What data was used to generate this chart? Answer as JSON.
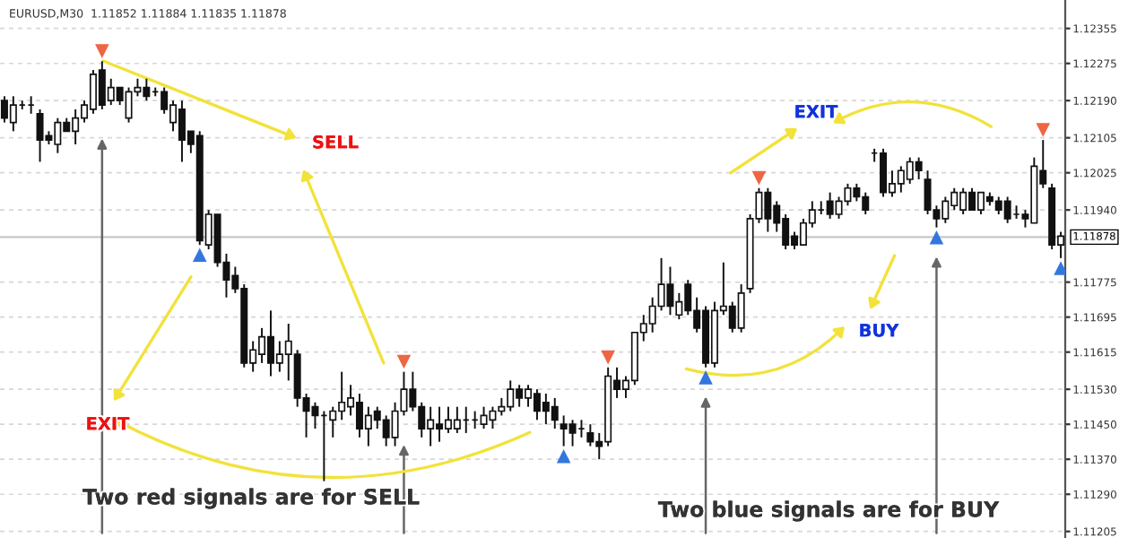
{
  "chart_data": {
    "type": "candlestick",
    "title": "EURUSD,M30  1.11852 1.11884 1.11835 1.11878",
    "categories": [
      null,
      null,
      null,
      null,
      null,
      null,
      null,
      null,
      null,
      null,
      null,
      null,
      null,
      null,
      null,
      null,
      null,
      null,
      null,
      null,
      null,
      null,
      null,
      null,
      null,
      null,
      null,
      null,
      null,
      null,
      null,
      null,
      null,
      null,
      null,
      null,
      null,
      null,
      null,
      null,
      null,
      null,
      null,
      null,
      null,
      null,
      null,
      null,
      null,
      null,
      null,
      null,
      null,
      null,
      null,
      null,
      null,
      null,
      null,
      null,
      null,
      null,
      null,
      null,
      null,
      null,
      null,
      null,
      null,
      null,
      null,
      null,
      null,
      null,
      null,
      null,
      null,
      null,
      null,
      null,
      null,
      null,
      null,
      null,
      null,
      null,
      null,
      null,
      null,
      null,
      null,
      null,
      null,
      null,
      null,
      null,
      null,
      null,
      null,
      null,
      null,
      null,
      null,
      null,
      null,
      null,
      null,
      null,
      null,
      null,
      null,
      null,
      null,
      null,
      null,
      null,
      null,
      null,
      null,
      null
    ],
    "ohlc": [
      [
        1.1219,
        1.122,
        1.1214,
        1.1215
      ],
      [
        1.1214,
        1.122,
        1.1212,
        1.1218
      ],
      [
        1.1218,
        1.1219,
        1.1217,
        1.1218
      ],
      [
        1.1218,
        1.122,
        1.1216,
        1.1218
      ],
      [
        1.1216,
        1.1217,
        1.1205,
        1.121
      ],
      [
        1.1211,
        1.1212,
        1.1209,
        1.121
      ],
      [
        1.1209,
        1.1215,
        1.1207,
        1.1214
      ],
      [
        1.1214,
        1.1215,
        1.1212,
        1.1212
      ],
      [
        1.1212,
        1.1217,
        1.1209,
        1.1215
      ],
      [
        1.1215,
        1.1219,
        1.1214,
        1.1218
      ],
      [
        1.1217,
        1.1226,
        1.1216,
        1.1225
      ],
      [
        1.1226,
        1.1228,
        1.1217,
        1.1218
      ],
      [
        1.1219,
        1.1224,
        1.1218,
        1.1222
      ],
      [
        1.1222,
        1.1222,
        1.1218,
        1.1219
      ],
      [
        1.1215,
        1.1222,
        1.1214,
        1.1221
      ],
      [
        1.1221,
        1.1224,
        1.122,
        1.1222
      ],
      [
        1.1222,
        1.1224,
        1.1219,
        1.122
      ],
      [
        1.1221,
        1.1222,
        1.122,
        1.1221
      ],
      [
        1.1221,
        1.1222,
        1.1216,
        1.1217
      ],
      [
        1.1214,
        1.1219,
        1.1212,
        1.1218
      ],
      [
        1.1217,
        1.1219,
        1.1205,
        1.121
      ],
      [
        1.1212,
        1.1212,
        1.1207,
        1.1209
      ],
      [
        1.1211,
        1.1212,
        1.1186,
        1.1187
      ],
      [
        1.1186,
        1.1194,
        1.1185,
        1.1193
      ],
      [
        1.1193,
        1.1193,
        1.1181,
        1.1182
      ],
      [
        1.1182,
        1.1184,
        1.1174,
        1.1178
      ],
      [
        1.1179,
        1.1181,
        1.1175,
        1.1176
      ],
      [
        1.1176,
        1.1177,
        1.1158,
        1.1159
      ],
      [
        1.1159,
        1.1164,
        1.1157,
        1.1162
      ],
      [
        1.1161,
        1.1167,
        1.1159,
        1.1165
      ],
      [
        1.1165,
        1.1171,
        1.1156,
        1.1159
      ],
      [
        1.1159,
        1.1164,
        1.1157,
        1.1161
      ],
      [
        1.1161,
        1.1168,
        1.1155,
        1.1164
      ],
      [
        1.1161,
        1.1162,
        1.1149,
        1.1151
      ],
      [
        1.1151,
        1.1152,
        1.1142,
        1.1148
      ],
      [
        1.1149,
        1.115,
        1.1144,
        1.1147
      ],
      [
        1.1147,
        1.1148,
        1.1132,
        1.1147
      ],
      [
        1.1146,
        1.1149,
        1.1142,
        1.1148
      ],
      [
        1.1148,
        1.1157,
        1.1146,
        1.115
      ],
      [
        1.1149,
        1.1154,
        1.1147,
        1.1151
      ],
      [
        1.115,
        1.1152,
        1.1142,
        1.1144
      ],
      [
        1.1144,
        1.1149,
        1.114,
        1.1147
      ],
      [
        1.1148,
        1.1149,
        1.1144,
        1.1146
      ],
      [
        1.1146,
        1.1147,
        1.114,
        1.1142
      ],
      [
        1.1142,
        1.115,
        1.114,
        1.1148
      ],
      [
        1.1148,
        1.1157,
        1.1147,
        1.1153
      ],
      [
        1.1153,
        1.1157,
        1.1148,
        1.1149
      ],
      [
        1.1149,
        1.115,
        1.1142,
        1.1144
      ],
      [
        1.1144,
        1.1149,
        1.114,
        1.1146
      ],
      [
        1.1145,
        1.1149,
        1.1141,
        1.1144
      ],
      [
        1.1144,
        1.1149,
        1.1143,
        1.1146
      ],
      [
        1.1144,
        1.1149,
        1.1143,
        1.1146
      ],
      [
        1.1146,
        1.1149,
        1.1143,
        1.1146
      ],
      [
        1.1146,
        1.1148,
        1.1144,
        1.1146
      ],
      [
        1.1145,
        1.1149,
        1.1144,
        1.1147
      ],
      [
        1.1146,
        1.1149,
        1.1144,
        1.1148
      ],
      [
        1.1148,
        1.1151,
        1.1147,
        1.1149
      ],
      [
        1.1149,
        1.1155,
        1.1148,
        1.1153
      ],
      [
        1.1153,
        1.1154,
        1.1149,
        1.1151
      ],
      [
        1.1151,
        1.1154,
        1.1149,
        1.1153
      ],
      [
        1.1152,
        1.1153,
        1.1146,
        1.1148
      ],
      [
        1.115,
        1.1152,
        1.1145,
        1.1148
      ],
      [
        1.1149,
        1.1151,
        1.1144,
        1.1146
      ],
      [
        1.1145,
        1.1147,
        1.114,
        1.1144
      ],
      [
        1.1145,
        1.1146,
        1.114,
        1.1143
      ],
      [
        1.1144,
        1.1146,
        1.1142,
        1.1144
      ],
      [
        1.1143,
        1.1145,
        1.114,
        1.1141
      ],
      [
        1.1141,
        1.1143,
        1.1137,
        1.114
      ],
      [
        1.1141,
        1.1158,
        1.114,
        1.1156
      ],
      [
        1.1155,
        1.1158,
        1.1151,
        1.1153
      ],
      [
        1.1153,
        1.1156,
        1.1151,
        1.1155
      ],
      [
        1.1155,
        1.1166,
        1.1154,
        1.1166
      ],
      [
        1.1166,
        1.117,
        1.1164,
        1.1168
      ],
      [
        1.1168,
        1.1174,
        1.1166,
        1.1172
      ],
      [
        1.1172,
        1.1183,
        1.1171,
        1.1177
      ],
      [
        1.1177,
        1.1181,
        1.117,
        1.1172
      ],
      [
        1.117,
        1.1175,
        1.1169,
        1.1173
      ],
      [
        1.1177,
        1.1178,
        1.117,
        1.1171
      ],
      [
        1.1171,
        1.1174,
        1.1166,
        1.1167
      ],
      [
        1.1171,
        1.1172,
        1.1158,
        1.1159
      ],
      [
        1.1159,
        1.1173,
        1.1158,
        1.1171
      ],
      [
        1.1171,
        1.1182,
        1.117,
        1.1172
      ],
      [
        1.1172,
        1.1173,
        1.1166,
        1.1167
      ],
      [
        1.1167,
        1.1177,
        1.1166,
        1.1175
      ],
      [
        1.1176,
        1.1193,
        1.1175,
        1.1192
      ],
      [
        1.1192,
        1.1199,
        1.1191,
        1.1198
      ],
      [
        1.1198,
        1.1199,
        1.1189,
        1.1192
      ],
      [
        1.1195,
        1.1196,
        1.1189,
        1.1191
      ],
      [
        1.1192,
        1.1193,
        1.1185,
        1.1186
      ],
      [
        1.1188,
        1.1189,
        1.1185,
        1.1186
      ],
      [
        1.1186,
        1.1192,
        1.1186,
        1.1191
      ],
      [
        1.1191,
        1.1196,
        1.119,
        1.1194
      ],
      [
        1.1194,
        1.1196,
        1.1193,
        1.1194
      ],
      [
        1.1196,
        1.1198,
        1.1192,
        1.1193
      ],
      [
        1.1193,
        1.1197,
        1.1192,
        1.1196
      ],
      [
        1.1196,
        1.12,
        1.1195,
        1.1199
      ],
      [
        1.1199,
        1.12,
        1.1196,
        1.1197
      ],
      [
        1.1197,
        1.1198,
        1.1193,
        1.1194
      ],
      [
        1.1207,
        1.1208,
        1.1205,
        1.1207
      ],
      [
        1.1207,
        1.1208,
        1.1197,
        1.1198
      ],
      [
        1.1198,
        1.1203,
        1.1197,
        1.12
      ],
      [
        1.12,
        1.1204,
        1.1198,
        1.1203
      ],
      [
        1.1201,
        1.1206,
        1.12,
        1.1205
      ],
      [
        1.1205,
        1.1206,
        1.1201,
        1.1203
      ],
      [
        1.1201,
        1.1203,
        1.1193,
        1.1194
      ],
      [
        1.1194,
        1.1195,
        1.119,
        1.1192
      ],
      [
        1.1192,
        1.1197,
        1.1191,
        1.1196
      ],
      [
        1.1195,
        1.1199,
        1.1194,
        1.1198
      ],
      [
        1.1194,
        1.1199,
        1.1193,
        1.1198
      ],
      [
        1.1198,
        1.1199,
        1.1194,
        1.1194
      ],
      [
        1.1194,
        1.1198,
        1.1193,
        1.1198
      ],
      [
        1.1197,
        1.1198,
        1.1195,
        1.1196
      ],
      [
        1.1196,
        1.1197,
        1.1193,
        1.1194
      ],
      [
        1.1196,
        1.1197,
        1.1191,
        1.1192
      ],
      [
        1.1193,
        1.1195,
        1.1192,
        1.1193
      ],
      [
        1.1193,
        1.1194,
        1.119,
        1.1192
      ],
      [
        1.1191,
        1.1206,
        1.1191,
        1.1204
      ],
      [
        1.1203,
        1.121,
        1.1199,
        1.12
      ],
      [
        1.1199,
        1.12,
        1.1185,
        1.1186
      ],
      [
        1.1186,
        1.1189,
        1.1183,
        1.1188
      ]
    ],
    "ylim": [
      1.1119,
      1.1242
    ],
    "yticks": [
      1.12355,
      1.12275,
      {
        "value": 1.1219,
        "label": "1.12190"
      },
      1.12105,
      1.12025,
      {
        "value": 1.1194,
        "label": "1.11940"
      },
      1.11775,
      1.11695,
      1.11615,
      {
        "value": 1.1153,
        "label": "1.11530"
      },
      {
        "value": 1.1145,
        "label": "1.11450"
      },
      {
        "value": 1.1137,
        "label": "1.11370"
      },
      {
        "value": 1.1129,
        "label": "1.11290"
      },
      1.11205
    ],
    "ref_lines": [
      {
        "axis": "y",
        "value": 1.11878,
        "label": "1.11878",
        "color": "#c8c8c8"
      }
    ],
    "grid": "y",
    "annotations": [
      "SELL",
      "EXIT",
      "EXIT",
      "BUY",
      "Two red signals are for SELL",
      "Two blue signals are for BUY"
    ]
  }
}
